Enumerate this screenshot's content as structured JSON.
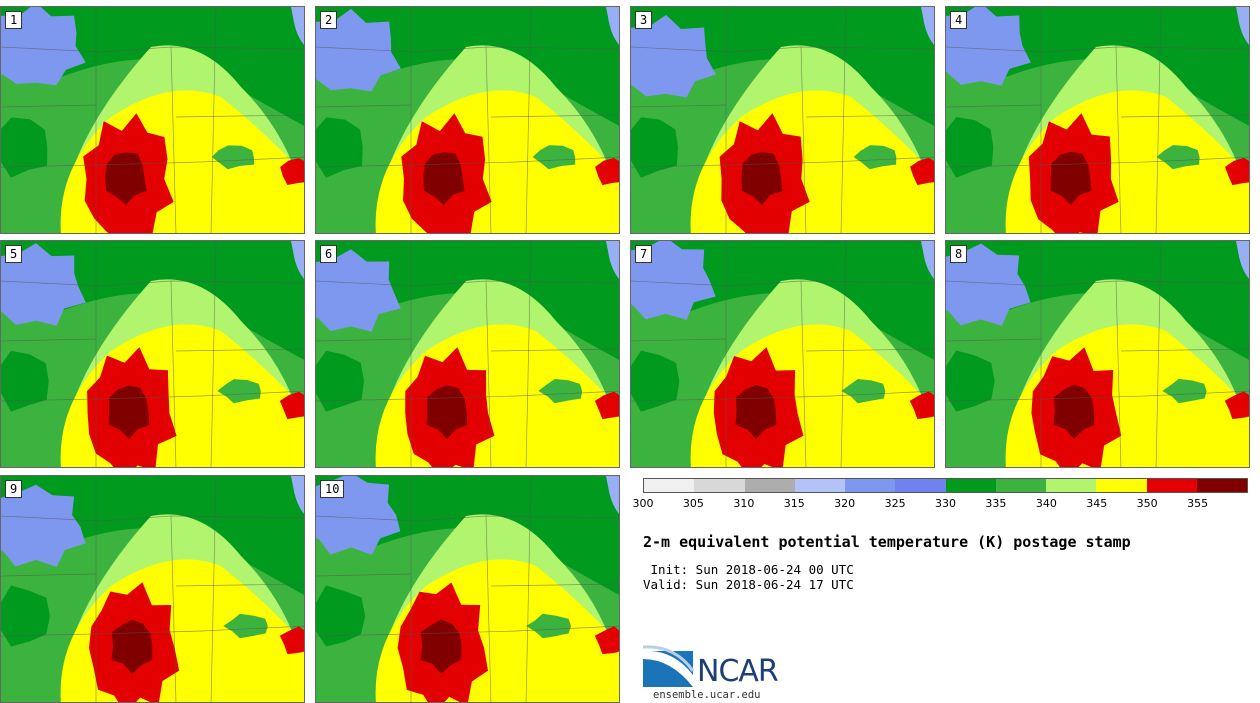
{
  "title": "2-m equivalent potential temperature (K) postage stamp",
  "init_line": " Init: Sun 2018-06-24 00 UTC",
  "valid_line": "Valid: Sun 2018-06-24 17 UTC",
  "logo_text": "NCAR",
  "logo_url": "ensemble.ucar.edu",
  "members": [
    "1",
    "2",
    "3",
    "4",
    "5",
    "6",
    "7",
    "8",
    "9",
    "10"
  ],
  "colorbar": {
    "ticks": [
      "300",
      "305",
      "310",
      "315",
      "320",
      "325",
      "330",
      "335",
      "340",
      "345",
      "350",
      "355"
    ],
    "colors": [
      "#f0f0f0",
      "#d8d8d8",
      "#adadad",
      "#b3c3f7",
      "#7e98f0",
      "#6f82ee",
      "#009a1e",
      "#3db33f",
      "#b0f56d",
      "#ffff00",
      "#e30000",
      "#800000"
    ]
  },
  "colors": {
    "dark_green": "#009a1e",
    "green": "#3db33f",
    "light_green": "#b0f56d",
    "yellow": "#ffff00",
    "red": "#e30000",
    "dark_red": "#800000",
    "blue": "#7e98f0",
    "light_blue": "#98aef5"
  }
}
